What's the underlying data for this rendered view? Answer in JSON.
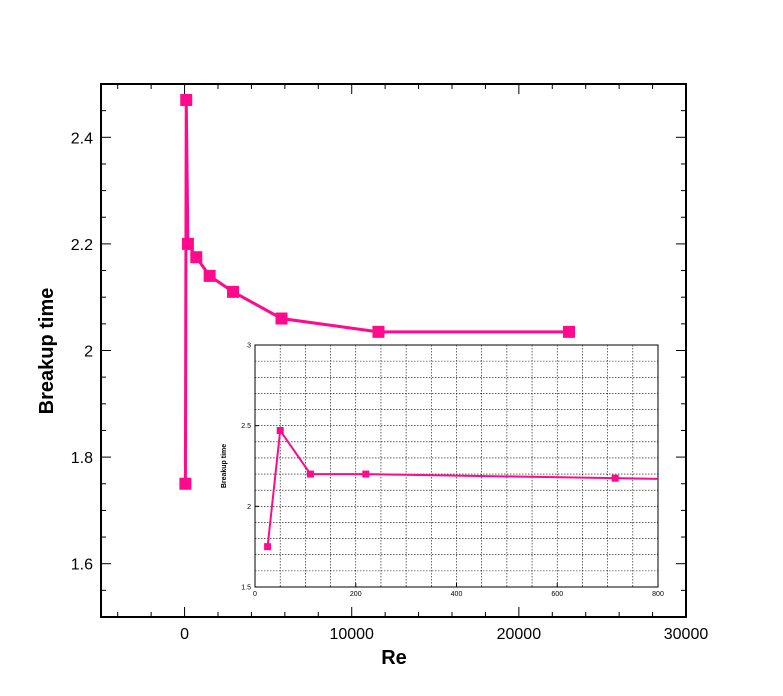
{
  "chart_data": [
    {
      "type": "line",
      "title": "",
      "xlabel": "Re",
      "ylabel": "Breakup time",
      "xlim": [
        -5000,
        30000
      ],
      "ylim": [
        1.5,
        2.5
      ],
      "xticks": [
        0,
        10000,
        20000,
        30000
      ],
      "xtick_labels": [
        "0",
        "10000",
        "20000",
        "30000"
      ],
      "yticks": [
        1.6,
        1.8,
        2.0,
        2.2,
        2.4
      ],
      "ytick_labels": [
        "1.6",
        "1.8",
        "2",
        "2.2",
        "2.4"
      ],
      "grid": false,
      "series": [
        {
          "color": "#ff0a8c",
          "marker": "square",
          "x": [
            50,
            100,
            200,
            700,
            1500,
            2900,
            5800,
            11600,
            23000
          ],
          "y": [
            1.75,
            2.47,
            2.2,
            2.175,
            2.14,
            2.11,
            2.06,
            2.035,
            2.035
          ]
        }
      ]
    },
    {
      "type": "line",
      "title": "",
      "xlabel": "",
      "ylabel": "Breakup time",
      "xlim": [
        0,
        800
      ],
      "ylim": [
        1.5,
        3.0
      ],
      "xticks": [
        0,
        200,
        400,
        600,
        800
      ],
      "xtick_labels": [
        "0",
        "200",
        "400",
        "600",
        "800"
      ],
      "yticks": [
        1.5,
        2.0,
        2.5,
        3.0
      ],
      "ytick_labels": [
        "1.5",
        "2",
        "2.5",
        "3"
      ],
      "grid": true,
      "series": [
        {
          "color": "#ff0a8c",
          "marker": "square",
          "x": [
            25,
            50,
            110,
            220,
            800
          ],
          "y": [
            1.75,
            2.47,
            2.2,
            2.2,
            2.17
          ],
          "marker_x": [
            25,
            50,
            110,
            220,
            715
          ]
        }
      ]
    }
  ]
}
